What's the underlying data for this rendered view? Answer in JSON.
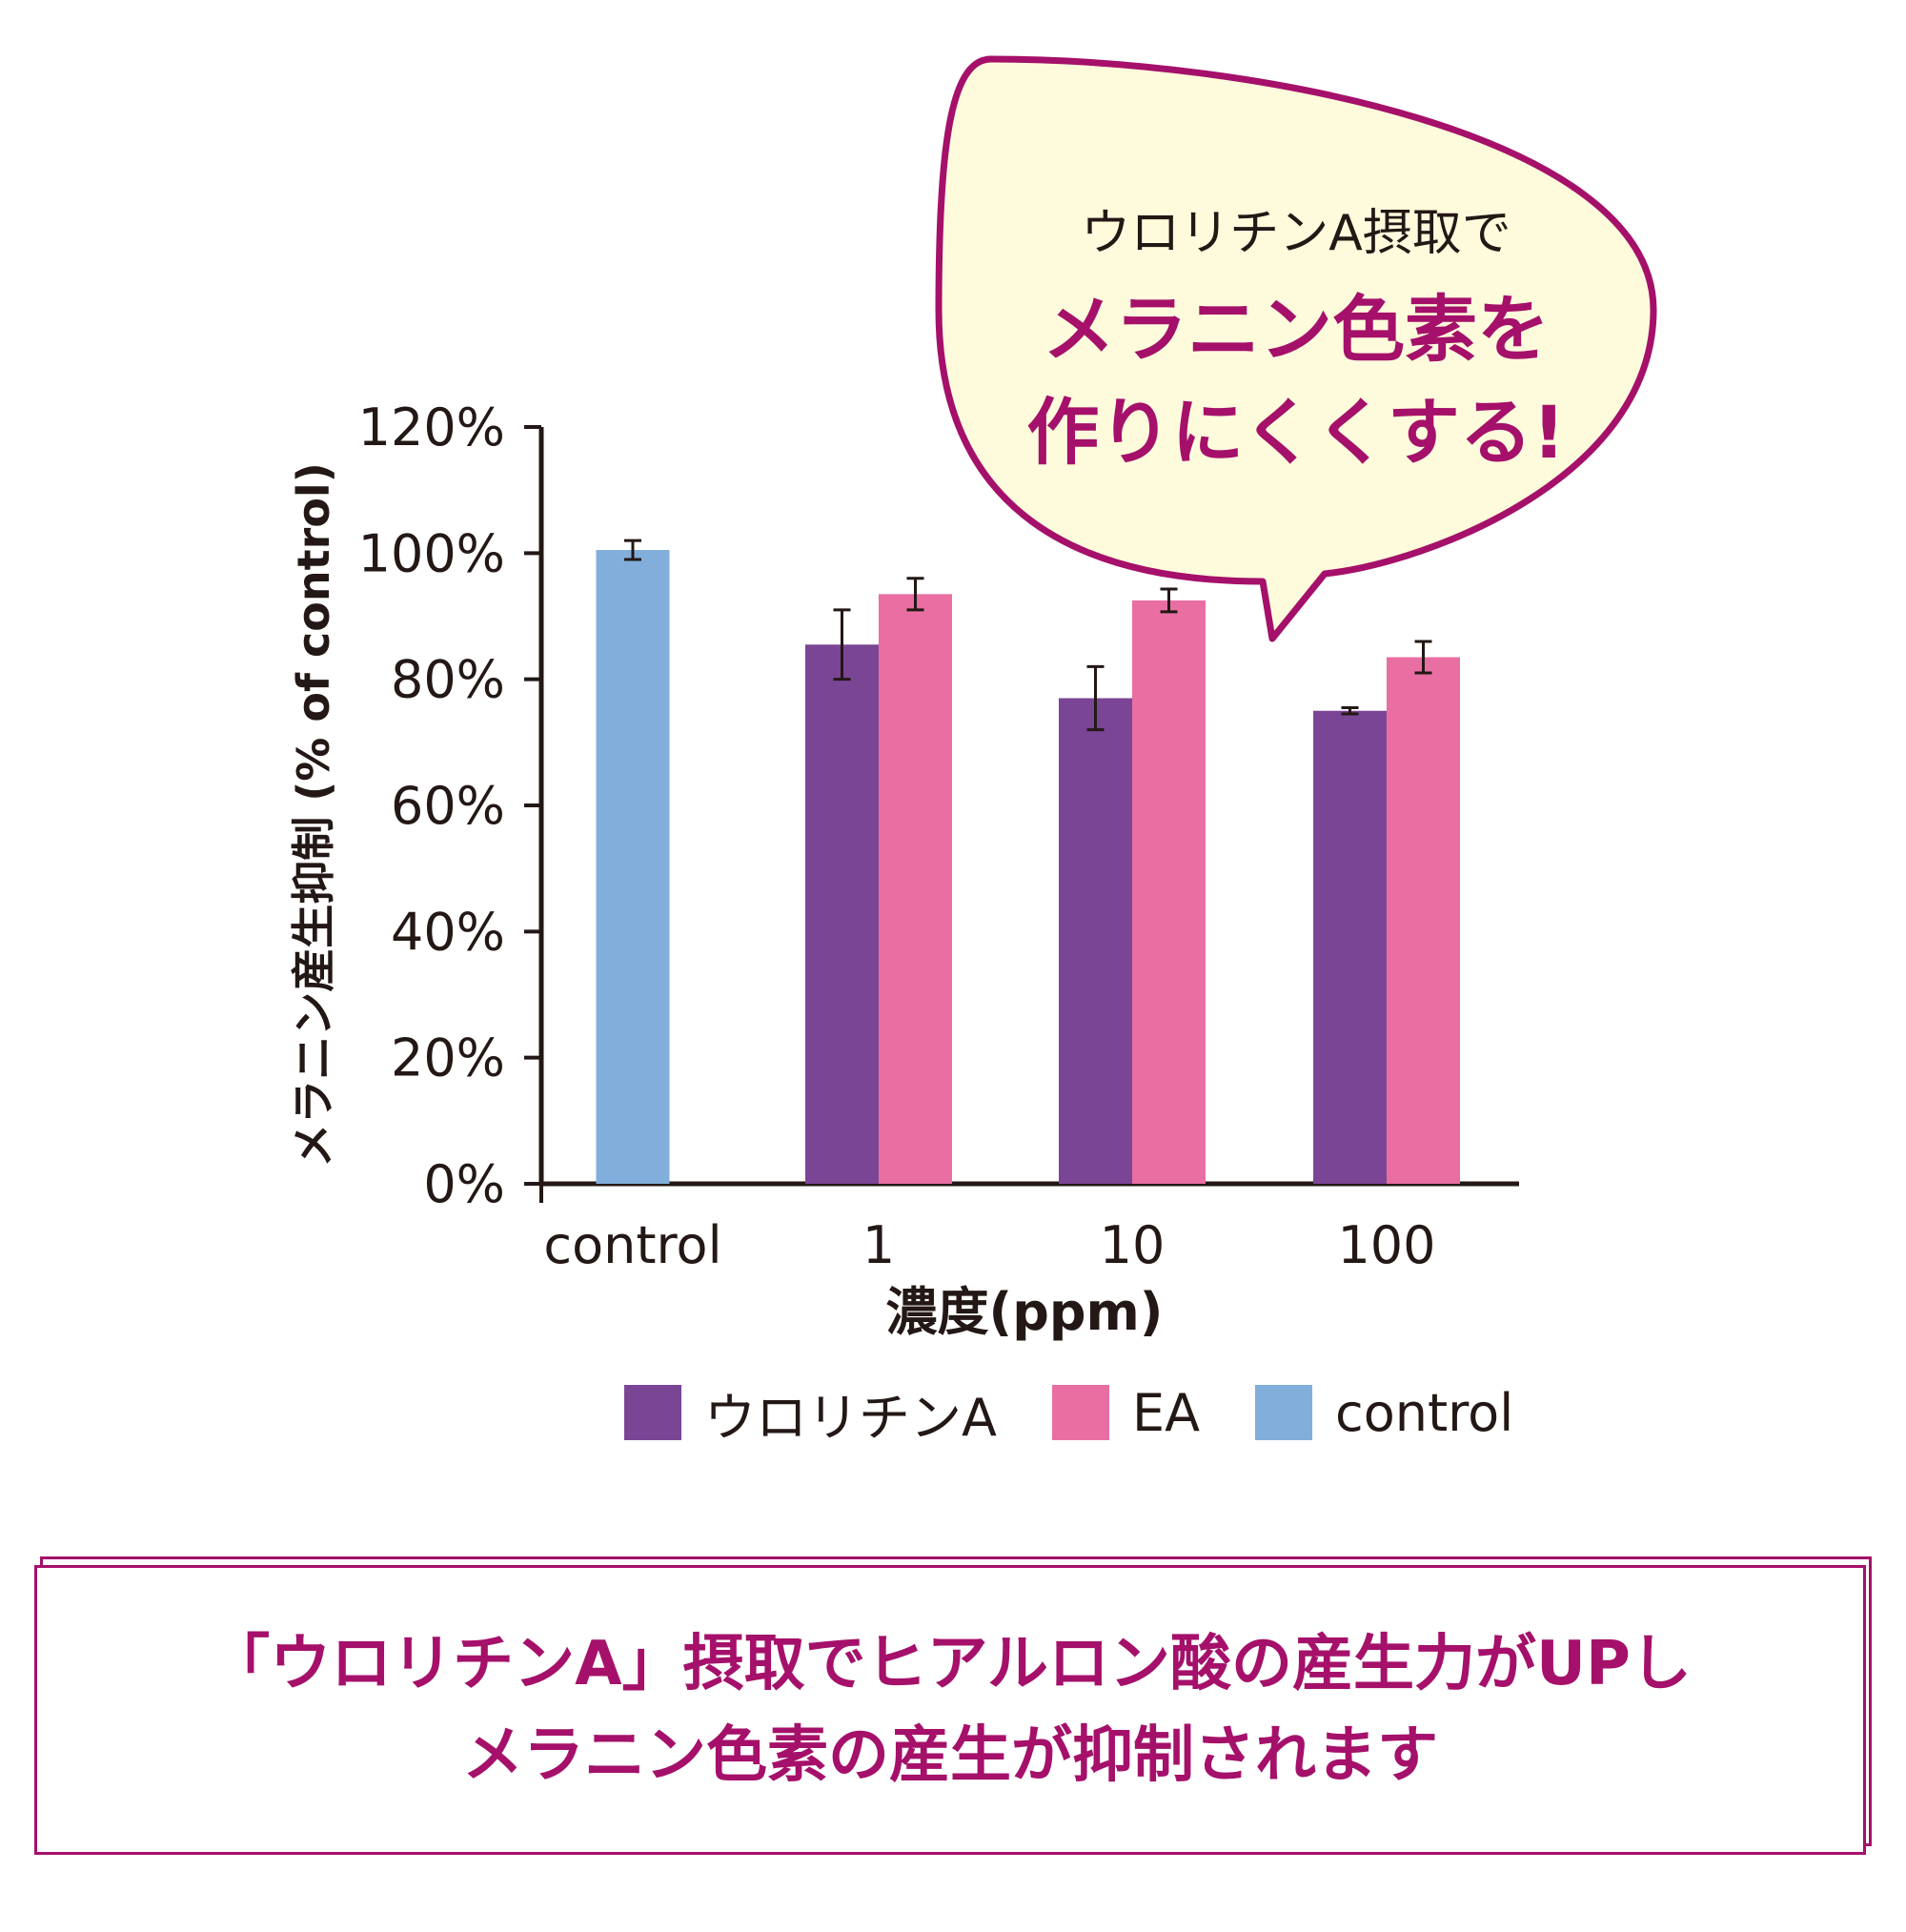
{
  "colors": {
    "urolithin": "#7b4596",
    "ea": "#e96fa3",
    "control": "#82aedc",
    "accent": "#a5106a",
    "bubble_fill": "#fefbdc",
    "axis": "#231815"
  },
  "callout": {
    "line1": "ウロリチンA摂取で",
    "line2": "メラニン色素を",
    "line3": "作りにくくする!"
  },
  "summary": {
    "line1": "「ウロリチンA」摂取でヒアルロン酸の産生力がUPし",
    "line2": "メラニン色素の産生が抑制されます"
  },
  "chart_data": {
    "type": "bar",
    "ylabel": "メラニン産生抑制 (% of control)",
    "xlabel": "濃度(ppm)",
    "ylim": [
      0,
      120
    ],
    "yticks": [
      "0%",
      "20%",
      "40%",
      "60%",
      "80%",
      "100%",
      "120%"
    ],
    "categories": [
      "control",
      "1",
      "10",
      "100"
    ],
    "grid": false,
    "legend_position": "bottom",
    "series": [
      {
        "name": "ウロリチンA",
        "values": [
          null,
          85.5,
          77,
          75
        ],
        "errors": [
          null,
          5.5,
          5,
          0.5
        ]
      },
      {
        "name": "EA",
        "values": [
          null,
          93.5,
          92.5,
          83.5
        ],
        "errors": [
          null,
          2.5,
          1.8,
          2.5
        ]
      },
      {
        "name": "control",
        "values": [
          100.5,
          null,
          null,
          null
        ],
        "errors": [
          1.5,
          null,
          null,
          null
        ]
      }
    ]
  }
}
